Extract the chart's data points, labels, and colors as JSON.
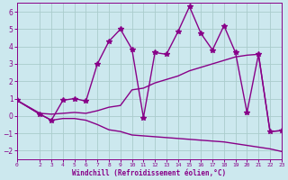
{
  "xlabel": "Windchill (Refroidissement éolien,°C)",
  "background_color": "#cce8ee",
  "grid_color": "#aacccc",
  "line_color": "#880088",
  "xlim": [
    0,
    23
  ],
  "ylim": [
    -2.5,
    6.5
  ],
  "yticks": [
    -2,
    -1,
    0,
    1,
    2,
    3,
    4,
    5,
    6
  ],
  "xticks": [
    0,
    2,
    3,
    4,
    5,
    6,
    7,
    8,
    9,
    10,
    11,
    12,
    13,
    14,
    15,
    16,
    17,
    18,
    19,
    20,
    21,
    22,
    23
  ],
  "series": [
    {
      "x": [
        0,
        2,
        3,
        4,
        5,
        6,
        7,
        8,
        9,
        10,
        11,
        12,
        13,
        14,
        15,
        16,
        17,
        18,
        19,
        20,
        21,
        22,
        23
      ],
      "y": [
        0.9,
        0.1,
        -0.25,
        0.9,
        1.0,
        0.85,
        3.0,
        4.3,
        5.0,
        3.85,
        -0.1,
        3.65,
        3.55,
        4.85,
        6.3,
        4.75,
        3.8,
        5.2,
        3.65,
        0.2,
        3.55,
        -0.9,
        -0.85
      ],
      "marker": "*",
      "markersize": 4,
      "linewidth": 1.0
    },
    {
      "x": [
        0,
        2,
        3,
        4,
        5,
        6,
        7,
        8,
        9,
        10,
        11,
        12,
        13,
        14,
        15,
        16,
        17,
        18,
        19,
        20,
        21,
        22,
        23
      ],
      "y": [
        0.9,
        0.15,
        0.1,
        0.15,
        0.2,
        0.15,
        0.3,
        0.5,
        0.6,
        1.5,
        1.6,
        1.9,
        2.1,
        2.3,
        2.6,
        2.8,
        3.0,
        3.2,
        3.4,
        3.5,
        3.55,
        -0.9,
        -0.85
      ],
      "marker": null,
      "markersize": 0,
      "linewidth": 1.0
    },
    {
      "x": [
        0,
        2,
        3,
        4,
        5,
        6,
        7,
        8,
        9,
        10,
        11,
        12,
        13,
        14,
        15,
        16,
        17,
        18,
        19,
        20,
        21,
        22,
        23
      ],
      "y": [
        0.9,
        0.1,
        -0.25,
        -0.15,
        -0.15,
        -0.25,
        -0.5,
        -0.8,
        -0.9,
        -1.1,
        -1.15,
        -1.2,
        -1.25,
        -1.3,
        -1.35,
        -1.4,
        -1.45,
        -1.5,
        -1.6,
        -1.7,
        -1.8,
        -1.9,
        -2.05
      ],
      "marker": null,
      "markersize": 0,
      "linewidth": 1.0
    }
  ]
}
